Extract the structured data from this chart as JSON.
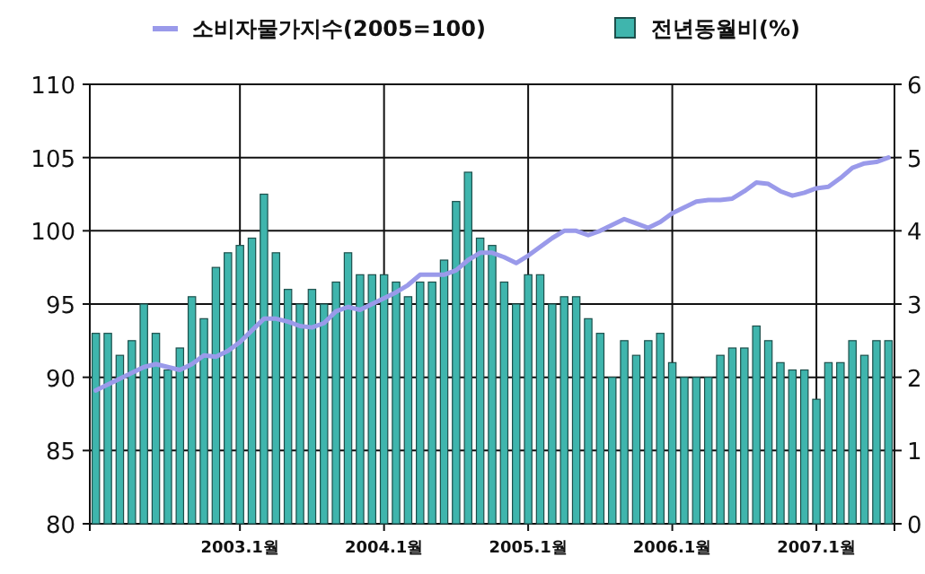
{
  "chart_data": {
    "type": "bar",
    "categories": [
      null,
      null,
      null,
      null,
      null,
      null,
      null,
      null,
      null,
      null,
      null,
      null,
      "2003.1월",
      null,
      null,
      null,
      null,
      null,
      null,
      null,
      null,
      null,
      null,
      null,
      "2004.1월",
      null,
      null,
      null,
      null,
      null,
      null,
      null,
      null,
      null,
      null,
      null,
      "2005.1월",
      null,
      null,
      null,
      null,
      null,
      null,
      null,
      null,
      null,
      null,
      null,
      "2006.1월",
      null,
      null,
      null,
      null,
      null,
      null,
      null,
      null,
      null,
      null,
      null,
      "2007.1월",
      null,
      null,
      null,
      null,
      null,
      null
    ],
    "series": [
      {
        "name": "소비자물가지수(2005=100)",
        "type": "line",
        "color": "#9a9aea",
        "values": [
          89.1,
          89.5,
          89.9,
          90.3,
          90.7,
          90.9,
          90.7,
          90.5,
          90.9,
          91.5,
          91.4,
          91.8,
          92.4,
          93.2,
          94.0,
          94.0,
          93.8,
          93.5,
          93.4,
          93.7,
          94.5,
          94.8,
          94.6,
          95.0,
          95.4,
          95.8,
          96.3,
          97.0,
          97.0,
          97.0,
          97.3,
          98.0,
          98.5,
          98.5,
          98.2,
          97.8,
          98.3,
          98.9,
          99.5,
          100.0,
          100.0,
          99.7,
          100.0,
          100.4,
          100.8,
          100.5,
          100.2,
          100.6,
          101.2,
          101.6,
          102.0,
          102.1,
          102.1,
          102.2,
          102.7,
          103.3,
          103.2,
          102.7,
          102.4,
          102.6,
          102.9,
          103.0,
          103.6,
          104.3,
          104.6,
          104.7,
          105.0
        ]
      },
      {
        "name": "전년동월비(%)",
        "axis": "y2",
        "color": "#3fb5ad",
        "values": [
          2.6,
          2.6,
          2.3,
          2.5,
          3.0,
          2.6,
          2.1,
          2.4,
          3.1,
          2.8,
          3.5,
          3.7,
          3.8,
          3.9,
          4.5,
          3.7,
          3.2,
          3.0,
          3.2,
          3.0,
          3.3,
          3.7,
          3.4,
          3.4,
          3.4,
          3.3,
          3.1,
          3.3,
          3.3,
          3.6,
          4.4,
          4.8,
          3.9,
          3.8,
          3.3,
          3.0,
          3.4,
          3.4,
          3.0,
          3.1,
          3.1,
          2.8,
          2.6,
          2.0,
          2.5,
          2.3,
          2.5,
          2.6,
          2.2,
          2.0,
          2.0,
          2.0,
          2.3,
          2.4,
          2.4,
          2.7,
          2.5,
          2.2,
          2.1,
          2.1,
          1.7,
          2.2,
          2.2,
          2.5,
          2.3,
          2.5,
          2.5
        ]
      }
    ],
    "ylim": [
      80,
      110
    ],
    "yticks": [
      80,
      85,
      90,
      95,
      100,
      105,
      110
    ],
    "y2lim": [
      0,
      6
    ],
    "y2ticks": [
      0,
      1,
      2,
      3,
      4,
      5,
      6
    ],
    "grid": true,
    "legend": "top"
  }
}
